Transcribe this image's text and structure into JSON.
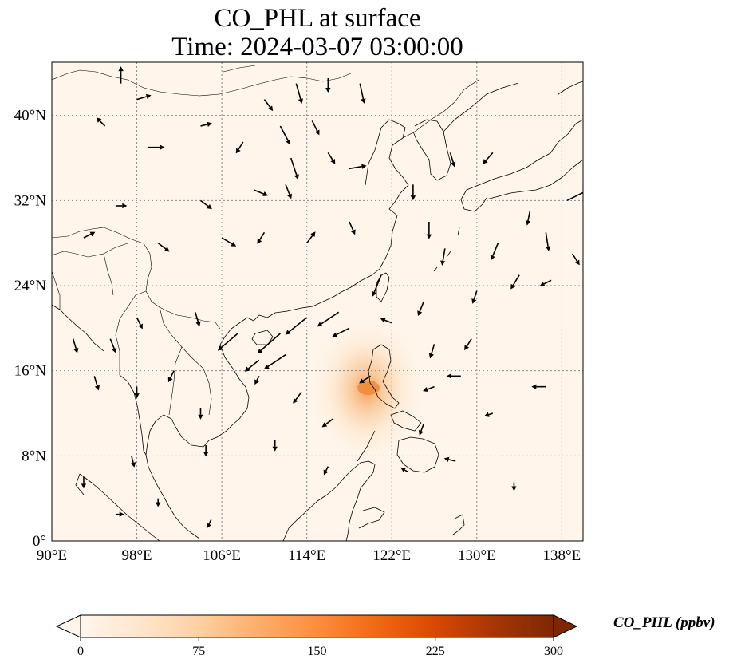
{
  "title": {
    "line1": "CO_PHL at surface",
    "line2": "Time: 2024-03-07 03:00:00"
  },
  "map": {
    "projection": "PlateCarree",
    "lon_range": [
      90,
      140
    ],
    "lat_range": [
      0,
      45
    ],
    "background_color": "#fff5ea",
    "coastline_color": "#000000",
    "gridline_style": "dotted",
    "gridline_color": "#888888",
    "lon_ticks": [
      90,
      98,
      106,
      114,
      122,
      130,
      138
    ],
    "lon_tick_labels": [
      "90°E",
      "98°E",
      "106°E",
      "114°E",
      "122°E",
      "130°E",
      "138°E"
    ],
    "lat_ticks": [
      0,
      8,
      16,
      24,
      32,
      40
    ],
    "lat_tick_labels": [
      "0°",
      "8°N",
      "16°N",
      "24°N",
      "32°N",
      "40°N"
    ],
    "plume": {
      "center_lon": 118.8,
      "center_lat": 14.5,
      "peak_ppbv": 200,
      "color": "#f4a25e"
    },
    "wind_vectors": [
      {
        "lon": 96.5,
        "lat": 43.0,
        "u": 0.0,
        "v": 1.2
      },
      {
        "lon": 98.0,
        "lat": 41.5,
        "u": 1.0,
        "v": 0.3
      },
      {
        "lon": 95.0,
        "lat": 39.0,
        "u": -0.6,
        "v": 0.6
      },
      {
        "lon": 99.0,
        "lat": 37.0,
        "u": 1.2,
        "v": 0.0
      },
      {
        "lon": 104.0,
        "lat": 39.0,
        "u": 0.8,
        "v": 0.2
      },
      {
        "lon": 110.0,
        "lat": 41.5,
        "u": 0.6,
        "v": -0.8
      },
      {
        "lon": 113.0,
        "lat": 43.0,
        "u": 0.4,
        "v": -1.4
      },
      {
        "lon": 116.0,
        "lat": 43.5,
        "u": 0.0,
        "v": -1.0
      },
      {
        "lon": 119.0,
        "lat": 43.0,
        "u": 0.3,
        "v": -1.4
      },
      {
        "lon": 111.5,
        "lat": 39.0,
        "u": 0.7,
        "v": -1.3
      },
      {
        "lon": 114.5,
        "lat": 39.5,
        "u": 0.5,
        "v": -1.0
      },
      {
        "lon": 108.0,
        "lat": 37.5,
        "u": -0.5,
        "v": -0.8
      },
      {
        "lon": 112.5,
        "lat": 36.0,
        "u": 0.5,
        "v": -1.5
      },
      {
        "lon": 116.0,
        "lat": 36.5,
        "u": 0.5,
        "v": -0.8
      },
      {
        "lon": 118.0,
        "lat": 35.0,
        "u": 1.2,
        "v": 0.2
      },
      {
        "lon": 109.0,
        "lat": 33.0,
        "u": 1.0,
        "v": -0.4
      },
      {
        "lon": 112.0,
        "lat": 33.5,
        "u": 0.4,
        "v": -1.0
      },
      {
        "lon": 104.0,
        "lat": 32.0,
        "u": 0.8,
        "v": -0.6
      },
      {
        "lon": 96.0,
        "lat": 31.5,
        "u": 0.8,
        "v": 0.0
      },
      {
        "lon": 93.0,
        "lat": 28.5,
        "u": 0.8,
        "v": 0.4
      },
      {
        "lon": 100.0,
        "lat": 28.0,
        "u": 0.8,
        "v": -0.6
      },
      {
        "lon": 106.0,
        "lat": 28.5,
        "u": 1.0,
        "v": -0.6
      },
      {
        "lon": 110.0,
        "lat": 29.0,
        "u": -0.5,
        "v": -0.8
      },
      {
        "lon": 114.0,
        "lat": 28.0,
        "u": 0.6,
        "v": 0.8
      },
      {
        "lon": 118.0,
        "lat": 30.0,
        "u": 0.4,
        "v": -0.9
      },
      {
        "lon": 124.0,
        "lat": 33.5,
        "u": 0.0,
        "v": -1.1
      },
      {
        "lon": 125.5,
        "lat": 30.0,
        "u": 0.0,
        "v": -1.2
      },
      {
        "lon": 127.0,
        "lat": 27.5,
        "u": -0.2,
        "v": -1.2
      },
      {
        "lon": 127.5,
        "lat": 36.5,
        "u": 0.3,
        "v": -1.0
      },
      {
        "lon": 131.5,
        "lat": 36.5,
        "u": -0.7,
        "v": -0.8
      },
      {
        "lon": 135.0,
        "lat": 31.0,
        "u": -0.2,
        "v": -1.0
      },
      {
        "lon": 136.5,
        "lat": 29.0,
        "u": 0.2,
        "v": -1.3
      },
      {
        "lon": 138.5,
        "lat": 32.0,
        "u": 1.6,
        "v": 0.8
      },
      {
        "lon": 139.0,
        "lat": 27.0,
        "u": 0.5,
        "v": -0.8
      },
      {
        "lon": 132.0,
        "lat": 28.0,
        "u": -0.5,
        "v": -1.2
      },
      {
        "lon": 134.0,
        "lat": 25.0,
        "u": -0.6,
        "v": -1.0
      },
      {
        "lon": 137.0,
        "lat": 24.5,
        "u": -0.8,
        "v": -0.4
      },
      {
        "lon": 130.0,
        "lat": 23.5,
        "u": -0.3,
        "v": -0.9
      },
      {
        "lon": 121.0,
        "lat": 25.0,
        "u": -0.6,
        "v": -1.5
      },
      {
        "lon": 125.0,
        "lat": 22.5,
        "u": -0.4,
        "v": -1.0
      },
      {
        "lon": 117.0,
        "lat": 21.5,
        "u": -1.5,
        "v": -1.0
      },
      {
        "lon": 114.0,
        "lat": 21.0,
        "u": -1.5,
        "v": -1.2
      },
      {
        "lon": 111.5,
        "lat": 19.5,
        "u": -1.6,
        "v": -1.4
      },
      {
        "lon": 107.5,
        "lat": 19.5,
        "u": -1.4,
        "v": -1.2
      },
      {
        "lon": 112.0,
        "lat": 17.5,
        "u": -1.5,
        "v": -1.0
      },
      {
        "lon": 109.5,
        "lat": 17.0,
        "u": -1.0,
        "v": -0.8
      },
      {
        "lon": 118.0,
        "lat": 20.0,
        "u": -1.2,
        "v": -0.6
      },
      {
        "lon": 122.0,
        "lat": 20.5,
        "u": -0.8,
        "v": 0.3
      },
      {
        "lon": 126.0,
        "lat": 18.5,
        "u": -0.3,
        "v": -1.0
      },
      {
        "lon": 129.5,
        "lat": 19.0,
        "u": -0.5,
        "v": -0.8
      },
      {
        "lon": 103.5,
        "lat": 21.5,
        "u": 0.3,
        "v": -1.0
      },
      {
        "lon": 98.0,
        "lat": 21.0,
        "u": 0.4,
        "v": -0.8
      },
      {
        "lon": 95.5,
        "lat": 19.0,
        "u": 0.4,
        "v": -1.0
      },
      {
        "lon": 92.0,
        "lat": 19.0,
        "u": 0.3,
        "v": -1.0
      },
      {
        "lon": 94.0,
        "lat": 15.5,
        "u": 0.3,
        "v": -1.0
      },
      {
        "lon": 98.0,
        "lat": 14.5,
        "u": 0.0,
        "v": -0.8
      },
      {
        "lon": 101.5,
        "lat": 16.0,
        "u": -0.4,
        "v": -0.8
      },
      {
        "lon": 104.0,
        "lat": 12.5,
        "u": 0.0,
        "v": -0.8
      },
      {
        "lon": 109.5,
        "lat": 15.5,
        "u": -0.3,
        "v": -0.6
      },
      {
        "lon": 113.5,
        "lat": 14.0,
        "u": -0.6,
        "v": -0.8
      },
      {
        "lon": 120.0,
        "lat": 15.5,
        "u": -0.8,
        "v": -0.5
      },
      {
        "lon": 126.0,
        "lat": 14.5,
        "u": -0.8,
        "v": -0.3
      },
      {
        "lon": 128.5,
        "lat": 15.5,
        "u": -1.0,
        "v": 0.0
      },
      {
        "lon": 136.5,
        "lat": 14.5,
        "u": -1.0,
        "v": 0.0
      },
      {
        "lon": 131.5,
        "lat": 12.0,
        "u": -0.6,
        "v": -0.2
      },
      {
        "lon": 125.0,
        "lat": 11.0,
        "u": -0.3,
        "v": -0.8
      },
      {
        "lon": 116.5,
        "lat": 11.5,
        "u": -0.8,
        "v": -0.6
      },
      {
        "lon": 111.0,
        "lat": 9.5,
        "u": 0.0,
        "v": -0.8
      },
      {
        "lon": 104.5,
        "lat": 9.0,
        "u": 0.0,
        "v": -0.8
      },
      {
        "lon": 97.5,
        "lat": 8.0,
        "u": 0.2,
        "v": -0.8
      },
      {
        "lon": 93.0,
        "lat": 6.0,
        "u": 0.0,
        "v": -0.8
      },
      {
        "lon": 96.0,
        "lat": 2.5,
        "u": 0.6,
        "v": 0.0
      },
      {
        "lon": 100.0,
        "lat": 4.0,
        "u": 0.0,
        "v": -0.6
      },
      {
        "lon": 105.0,
        "lat": 2.0,
        "u": -0.3,
        "v": -0.6
      },
      {
        "lon": 116.0,
        "lat": 7.0,
        "u": -0.3,
        "v": -0.6
      },
      {
        "lon": 123.5,
        "lat": 6.5,
        "u": -0.5,
        "v": 0.3
      },
      {
        "lon": 128.0,
        "lat": 7.5,
        "u": -0.8,
        "v": 0.2
      },
      {
        "lon": 133.5,
        "lat": 5.5,
        "u": 0.0,
        "v": -0.6
      }
    ]
  },
  "colorbar": {
    "label": "CO_PHL (ppbv)",
    "ticks": [
      0,
      75,
      150,
      225,
      300
    ],
    "tick_labels": [
      "0",
      "75",
      "150",
      "225",
      "300"
    ],
    "range": [
      0,
      300
    ],
    "colors": [
      "#fff5eb",
      "#fee6ce",
      "#fdd0a2",
      "#fdae6b",
      "#fd8d3c",
      "#f16913",
      "#d94801",
      "#a63603",
      "#7f2704"
    ]
  }
}
